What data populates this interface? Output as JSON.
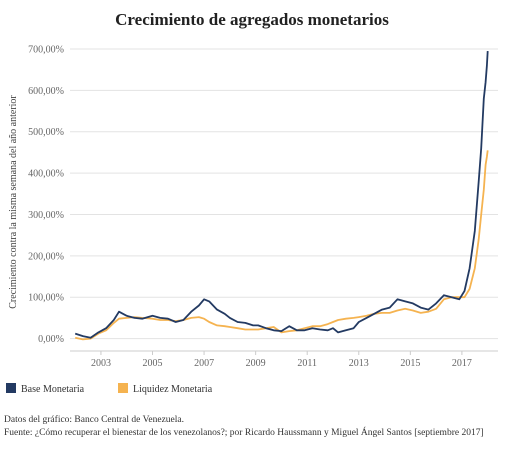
{
  "chart_data": {
    "type": "line",
    "title": "Crecimiento de agregados monetarios",
    "ylabel": "Crecimiento contra la misma semana del año anterior",
    "xlabel": "",
    "xlim": [
      2001.8,
      2018.4
    ],
    "ylim": [
      -30,
      700
    ],
    "x_ticks": [
      2003,
      2005,
      2007,
      2009,
      2011,
      2013,
      2015,
      2017
    ],
    "x_tick_labels": [
      "2003",
      "2005",
      "2007",
      "2009",
      "2011",
      "2013",
      "2015",
      "2017"
    ],
    "y_ticks": [
      0,
      100,
      200,
      300,
      400,
      500,
      600,
      700
    ],
    "y_tick_labels": [
      "0,00%",
      "100,00%",
      "200,00%",
      "300,00%",
      "400,00%",
      "500,00%",
      "600,00%",
      "700,00%"
    ],
    "grid": "horizontal",
    "legend_position": "bottom-left",
    "series": [
      {
        "name": "Base Monetaria",
        "color": "#233a62",
        "points": [
          [
            2002.0,
            12
          ],
          [
            2002.3,
            6
          ],
          [
            2002.6,
            2
          ],
          [
            2002.9,
            15
          ],
          [
            2003.2,
            25
          ],
          [
            2003.5,
            45
          ],
          [
            2003.7,
            65
          ],
          [
            2004.0,
            55
          ],
          [
            2004.3,
            50
          ],
          [
            2004.6,
            48
          ],
          [
            2005.0,
            55
          ],
          [
            2005.3,
            50
          ],
          [
            2005.6,
            48
          ],
          [
            2005.9,
            40
          ],
          [
            2006.2,
            45
          ],
          [
            2006.5,
            65
          ],
          [
            2006.8,
            80
          ],
          [
            2007.0,
            95
          ],
          [
            2007.2,
            90
          ],
          [
            2007.5,
            70
          ],
          [
            2007.8,
            60
          ],
          [
            2008.0,
            50
          ],
          [
            2008.3,
            40
          ],
          [
            2008.6,
            38
          ],
          [
            2008.9,
            32
          ],
          [
            2009.1,
            32
          ],
          [
            2009.4,
            25
          ],
          [
            2009.7,
            20
          ],
          [
            2010.0,
            18
          ],
          [
            2010.3,
            30
          ],
          [
            2010.6,
            20
          ],
          [
            2010.9,
            20
          ],
          [
            2011.2,
            25
          ],
          [
            2011.5,
            22
          ],
          [
            2011.8,
            20
          ],
          [
            2012.0,
            25
          ],
          [
            2012.2,
            15
          ],
          [
            2012.5,
            20
          ],
          [
            2012.8,
            25
          ],
          [
            2013.0,
            40
          ],
          [
            2013.3,
            50
          ],
          [
            2013.6,
            60
          ],
          [
            2013.9,
            70
          ],
          [
            2014.2,
            75
          ],
          [
            2014.5,
            95
          ],
          [
            2014.8,
            90
          ],
          [
            2015.1,
            85
          ],
          [
            2015.4,
            75
          ],
          [
            2015.7,
            70
          ],
          [
            2016.0,
            85
          ],
          [
            2016.3,
            105
          ],
          [
            2016.6,
            100
          ],
          [
            2016.9,
            95
          ],
          [
            2017.1,
            115
          ],
          [
            2017.3,
            170
          ],
          [
            2017.5,
            260
          ],
          [
            2017.65,
            380
          ],
          [
            2017.75,
            460
          ],
          [
            2017.85,
            580
          ],
          [
            2017.92,
            620
          ],
          [
            2017.97,
            660
          ],
          [
            2018.0,
            695
          ]
        ]
      },
      {
        "name": "Liquidez Monetaria",
        "color": "#f5b350",
        "points": [
          [
            2002.0,
            2
          ],
          [
            2002.3,
            -2
          ],
          [
            2002.6,
            0
          ],
          [
            2002.9,
            12
          ],
          [
            2003.2,
            20
          ],
          [
            2003.5,
            38
          ],
          [
            2003.7,
            48
          ],
          [
            2004.0,
            50
          ],
          [
            2004.3,
            52
          ],
          [
            2004.6,
            50
          ],
          [
            2005.0,
            48
          ],
          [
            2005.3,
            45
          ],
          [
            2005.6,
            45
          ],
          [
            2005.9,
            42
          ],
          [
            2006.2,
            45
          ],
          [
            2006.5,
            50
          ],
          [
            2006.8,
            52
          ],
          [
            2007.0,
            48
          ],
          [
            2007.2,
            40
          ],
          [
            2007.5,
            32
          ],
          [
            2007.8,
            30
          ],
          [
            2008.0,
            28
          ],
          [
            2008.3,
            25
          ],
          [
            2008.6,
            22
          ],
          [
            2008.9,
            22
          ],
          [
            2009.1,
            22
          ],
          [
            2009.4,
            25
          ],
          [
            2009.7,
            28
          ],
          [
            2010.0,
            15
          ],
          [
            2010.3,
            18
          ],
          [
            2010.6,
            20
          ],
          [
            2010.9,
            25
          ],
          [
            2011.2,
            30
          ],
          [
            2011.5,
            30
          ],
          [
            2011.8,
            35
          ],
          [
            2012.0,
            40
          ],
          [
            2012.2,
            45
          ],
          [
            2012.5,
            48
          ],
          [
            2012.8,
            50
          ],
          [
            2013.0,
            52
          ],
          [
            2013.3,
            55
          ],
          [
            2013.6,
            60
          ],
          [
            2013.9,
            62
          ],
          [
            2014.2,
            62
          ],
          [
            2014.5,
            68
          ],
          [
            2014.8,
            72
          ],
          [
            2015.1,
            68
          ],
          [
            2015.4,
            62
          ],
          [
            2015.7,
            65
          ],
          [
            2016.0,
            72
          ],
          [
            2016.3,
            95
          ],
          [
            2016.6,
            100
          ],
          [
            2016.9,
            100
          ],
          [
            2017.1,
            100
          ],
          [
            2017.3,
            120
          ],
          [
            2017.5,
            170
          ],
          [
            2017.65,
            240
          ],
          [
            2017.75,
            300
          ],
          [
            2017.85,
            360
          ],
          [
            2017.92,
            420
          ],
          [
            2017.97,
            440
          ],
          [
            2018.0,
            455
          ]
        ]
      }
    ]
  },
  "footer": {
    "source_line": "Datos del gráfico: Banco Central de Venezuela.",
    "credit_line": "Fuente: ¿Cómo recuperar el bienestar de los venezolanos?; por Ricardo Haussmann y Miguel Ángel Santos [septiembre 2017]"
  }
}
